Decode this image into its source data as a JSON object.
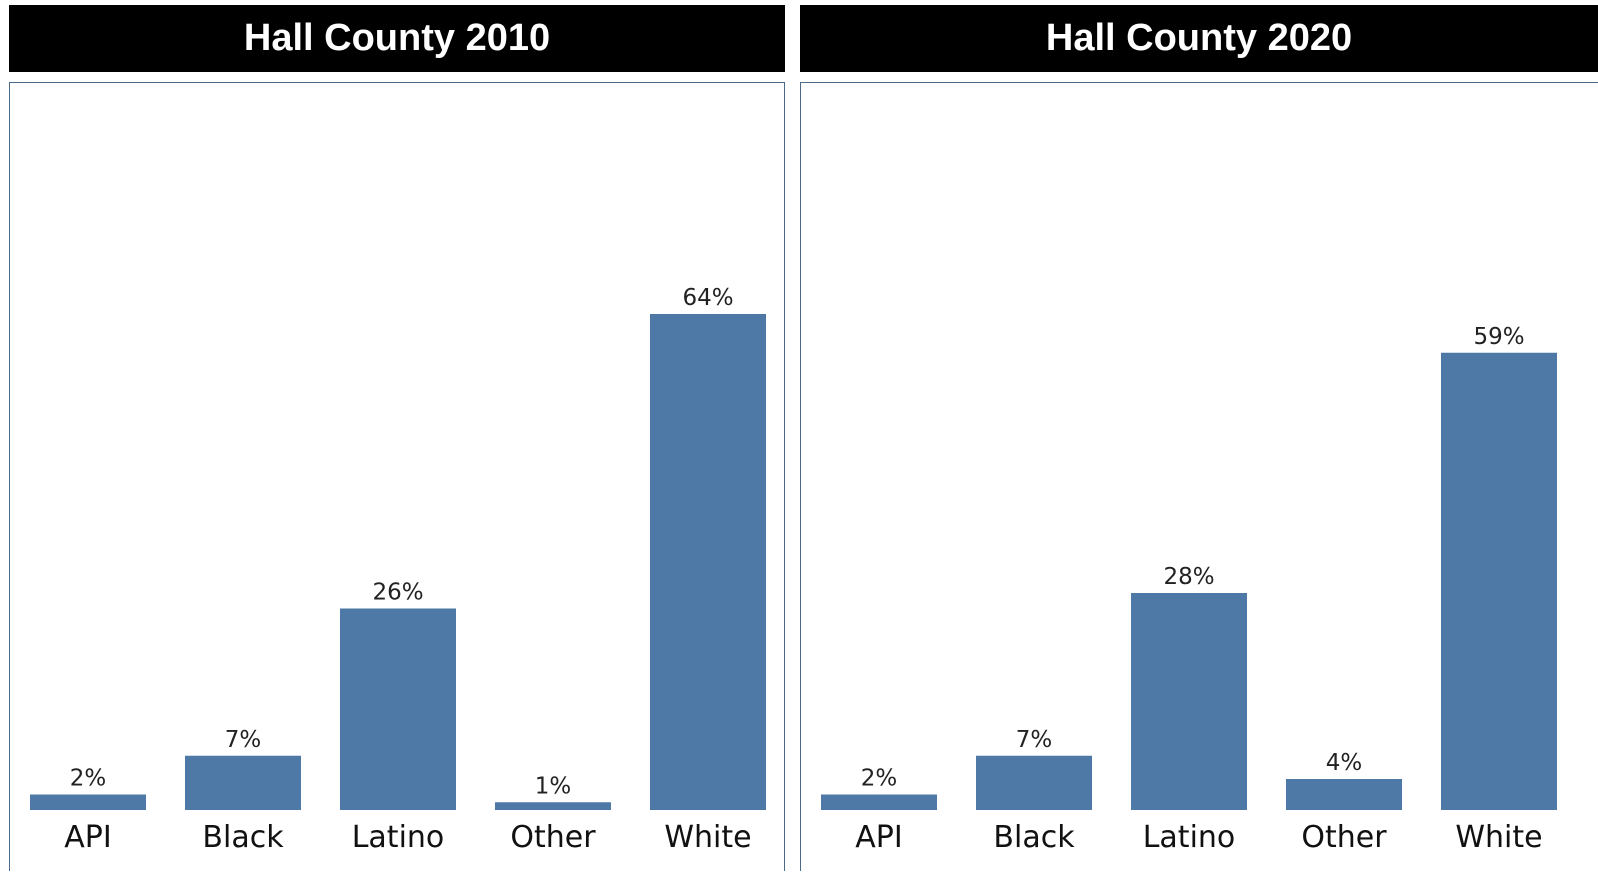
{
  "chart_data": [
    {
      "type": "bar",
      "title": "Hall County 2010",
      "categories": [
        "API",
        "Black",
        "Latino",
        "Other",
        "White"
      ],
      "values": [
        2,
        7,
        26,
        1,
        64
      ],
      "value_labels": [
        "2%",
        "7%",
        "26%",
        "1%",
        "64%"
      ],
      "ylim": [
        0,
        100
      ],
      "color": "#4e79a7",
      "grid": false
    },
    {
      "type": "bar",
      "title": "Hall County 2020",
      "categories": [
        "API",
        "Black",
        "Latino",
        "Other",
        "White"
      ],
      "values": [
        2,
        7,
        28,
        4,
        59
      ],
      "value_labels": [
        "2%",
        "7%",
        "28%",
        "4%",
        "59%"
      ],
      "ylim": [
        0,
        100
      ],
      "color": "#4e79a7",
      "grid": false
    }
  ]
}
